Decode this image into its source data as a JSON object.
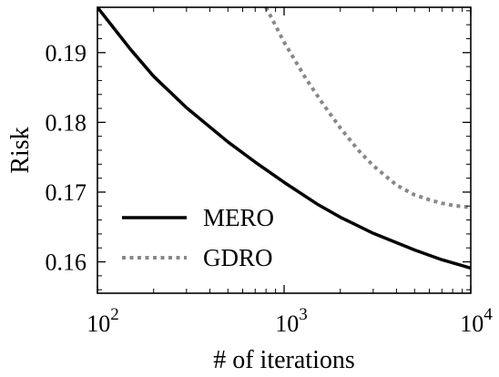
{
  "chart_data": {
    "type": "line",
    "title": "",
    "xlabel": "# of iterations",
    "ylabel": "Risk",
    "xscale": "log",
    "xlim": [
      100,
      10000
    ],
    "ylim": [
      0.1555,
      0.1965
    ],
    "x_ticks": [
      {
        "value": 100,
        "base": "10",
        "exp": "2"
      },
      {
        "value": 1000,
        "base": "10",
        "exp": "3"
      },
      {
        "value": 10000,
        "base": "10",
        "exp": "4"
      }
    ],
    "y_ticks": [
      {
        "value": 0.16,
        "label": "0.16"
      },
      {
        "value": 0.17,
        "label": "0.17"
      },
      {
        "value": 0.18,
        "label": "0.18"
      },
      {
        "value": 0.19,
        "label": "0.19"
      }
    ],
    "grid": false,
    "legend_position": "lower-left",
    "series": [
      {
        "name": "MERO",
        "color": "#000000",
        "style": "solid",
        "x": [
          100,
          150,
          200,
          300,
          500,
          700,
          1000,
          1500,
          2000,
          3000,
          5000,
          7000,
          10000
        ],
        "y": [
          0.1965,
          0.1905,
          0.1866,
          0.1821,
          0.1772,
          0.1743,
          0.1714,
          0.1683,
          0.1664,
          0.1641,
          0.1617,
          0.1603,
          0.1591
        ]
      },
      {
        "name": "GDRO",
        "color": "#888888",
        "style": "dotted",
        "x": [
          800,
          1000,
          1300,
          1600,
          2000,
          2500,
          3000,
          4000,
          5000,
          6000,
          7000,
          8000,
          10000
        ],
        "y": [
          0.1965,
          0.1915,
          0.1864,
          0.1828,
          0.1792,
          0.176,
          0.1738,
          0.171,
          0.1696,
          0.1689,
          0.1684,
          0.1681,
          0.1678
        ]
      }
    ]
  }
}
